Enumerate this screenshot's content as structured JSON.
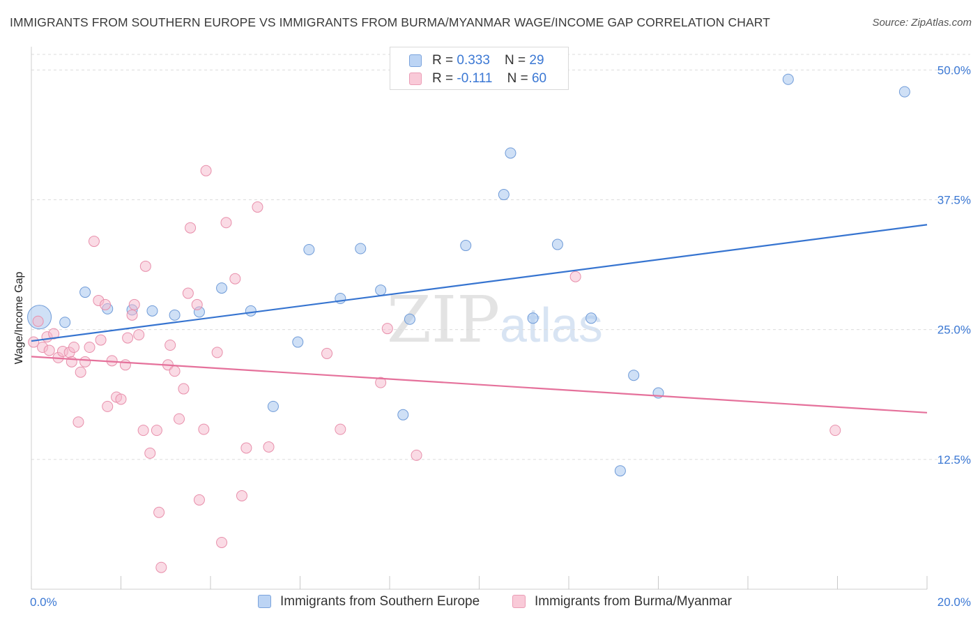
{
  "chart_data": {
    "type": "scatter",
    "title": "IMMIGRANTS FROM SOUTHERN EUROPE VS IMMIGRANTS FROM BURMA/MYANMAR WAGE/INCOME GAP CORRELATION CHART",
    "source": "Source: ZipAtlas.com",
    "ylabel": "Wage/Income Gap",
    "xlabel": "",
    "xlim": [
      0,
      20
    ],
    "ylim": [
      0,
      51.5
    ],
    "x_tick_labels": [
      {
        "value": 0,
        "label": "0.0%"
      },
      {
        "value": 20,
        "label": "20.0%"
      }
    ],
    "y_tick_labels": [
      {
        "value": 12.5,
        "label": "12.5%"
      },
      {
        "value": 25,
        "label": "25.0%"
      },
      {
        "value": 37.5,
        "label": "37.5%"
      },
      {
        "value": 50,
        "label": "50.0%"
      }
    ],
    "x_minor_ticks": [
      0,
      2,
      4,
      6,
      8,
      10,
      12,
      14,
      16,
      18,
      20
    ],
    "watermark": {
      "zip": "ZIP",
      "atlas": "atlas"
    },
    "legend_stats": [
      {
        "r_label": "R = ",
        "r_value": "0.333",
        "n_label": "N = ",
        "n_value": "29"
      },
      {
        "r_label": "R = ",
        "r_value": "-0.111",
        "n_label": "N = ",
        "n_value": "60"
      }
    ],
    "series": [
      {
        "name": "Immigrants from Southern Europe",
        "color": "#a8c6ee",
        "edge": "#6f9bd8",
        "line_color": "#3674d0",
        "trend": {
          "x0": 0,
          "y0": 23.9,
          "x1": 20,
          "y1": 35.1
        },
        "points": [
          {
            "x": 0.18,
            "y": 26.2,
            "big": true
          },
          {
            "x": 0.75,
            "y": 25.7
          },
          {
            "x": 1.2,
            "y": 28.6
          },
          {
            "x": 1.7,
            "y": 27.0
          },
          {
            "x": 2.25,
            "y": 26.9
          },
          {
            "x": 2.7,
            "y": 26.8
          },
          {
            "x": 3.2,
            "y": 26.4
          },
          {
            "x": 3.75,
            "y": 26.7
          },
          {
            "x": 4.25,
            "y": 29.0
          },
          {
            "x": 4.9,
            "y": 26.8
          },
          {
            "x": 5.4,
            "y": 17.6
          },
          {
            "x": 5.95,
            "y": 23.8
          },
          {
            "x": 6.2,
            "y": 32.7
          },
          {
            "x": 6.9,
            "y": 28.0
          },
          {
            "x": 7.35,
            "y": 32.8
          },
          {
            "x": 7.8,
            "y": 28.8
          },
          {
            "x": 8.3,
            "y": 16.8
          },
          {
            "x": 8.45,
            "y": 26.0
          },
          {
            "x": 9.7,
            "y": 33.1
          },
          {
            "x": 10.55,
            "y": 38.0
          },
          {
            "x": 10.7,
            "y": 42.0
          },
          {
            "x": 11.2,
            "y": 26.1
          },
          {
            "x": 11.75,
            "y": 33.2
          },
          {
            "x": 12.5,
            "y": 26.1
          },
          {
            "x": 13.15,
            "y": 11.4
          },
          {
            "x": 13.45,
            "y": 20.6
          },
          {
            "x": 14.0,
            "y": 18.9
          },
          {
            "x": 16.9,
            "y": 49.1
          },
          {
            "x": 19.5,
            "y": 47.9
          }
        ]
      },
      {
        "name": "Immigrants from Burma/Myanmar",
        "color": "#f6b8cb",
        "edge": "#e88fab",
        "line_color": "#e5719b",
        "trend": {
          "x0": 0,
          "y0": 22.4,
          "x1": 20,
          "y1": 17.0
        },
        "points": [
          {
            "x": 0.05,
            "y": 23.8
          },
          {
            "x": 0.15,
            "y": 25.8
          },
          {
            "x": 0.25,
            "y": 23.3
          },
          {
            "x": 0.35,
            "y": 24.3
          },
          {
            "x": 0.4,
            "y": 23.0
          },
          {
            "x": 0.5,
            "y": 24.6
          },
          {
            "x": 0.6,
            "y": 22.3
          },
          {
            "x": 0.7,
            "y": 22.9
          },
          {
            "x": 0.85,
            "y": 22.8
          },
          {
            "x": 0.9,
            "y": 21.9
          },
          {
            "x": 0.95,
            "y": 23.3
          },
          {
            "x": 1.05,
            "y": 16.1
          },
          {
            "x": 1.1,
            "y": 20.9
          },
          {
            "x": 1.2,
            "y": 21.9
          },
          {
            "x": 1.3,
            "y": 23.3
          },
          {
            "x": 1.4,
            "y": 33.5
          },
          {
            "x": 1.5,
            "y": 27.8
          },
          {
            "x": 1.55,
            "y": 24.0
          },
          {
            "x": 1.65,
            "y": 27.4
          },
          {
            "x": 1.7,
            "y": 17.6
          },
          {
            "x": 1.8,
            "y": 22.0
          },
          {
            "x": 1.9,
            "y": 18.5
          },
          {
            "x": 2.0,
            "y": 18.3
          },
          {
            "x": 2.1,
            "y": 21.6
          },
          {
            "x": 2.15,
            "y": 24.2
          },
          {
            "x": 2.25,
            "y": 26.4
          },
          {
            "x": 2.3,
            "y": 27.4
          },
          {
            "x": 2.4,
            "y": 24.5
          },
          {
            "x": 2.5,
            "y": 15.3
          },
          {
            "x": 2.55,
            "y": 31.1
          },
          {
            "x": 2.65,
            "y": 13.1
          },
          {
            "x": 2.8,
            "y": 15.3
          },
          {
            "x": 2.85,
            "y": 7.4
          },
          {
            "x": 2.9,
            "y": 2.1
          },
          {
            "x": 3.05,
            "y": 21.6
          },
          {
            "x": 3.1,
            "y": 23.5
          },
          {
            "x": 3.2,
            "y": 21.0
          },
          {
            "x": 3.3,
            "y": 16.4
          },
          {
            "x": 3.4,
            "y": 19.3
          },
          {
            "x": 3.5,
            "y": 28.5
          },
          {
            "x": 3.55,
            "y": 34.8
          },
          {
            "x": 3.7,
            "y": 27.4
          },
          {
            "x": 3.75,
            "y": 8.6
          },
          {
            "x": 3.85,
            "y": 15.4
          },
          {
            "x": 3.9,
            "y": 40.3
          },
          {
            "x": 4.15,
            "y": 22.8
          },
          {
            "x": 4.25,
            "y": 4.5
          },
          {
            "x": 4.35,
            "y": 35.3
          },
          {
            "x": 4.55,
            "y": 29.9
          },
          {
            "x": 4.7,
            "y": 9.0
          },
          {
            "x": 4.8,
            "y": 13.6
          },
          {
            "x": 5.05,
            "y": 36.8
          },
          {
            "x": 5.3,
            "y": 13.7
          },
          {
            "x": 6.6,
            "y": 22.7
          },
          {
            "x": 6.9,
            "y": 15.4
          },
          {
            "x": 7.8,
            "y": 19.9
          },
          {
            "x": 7.95,
            "y": 25.1
          },
          {
            "x": 8.6,
            "y": 12.9
          },
          {
            "x": 12.15,
            "y": 30.1
          },
          {
            "x": 17.95,
            "y": 15.3
          }
        ]
      }
    ]
  }
}
